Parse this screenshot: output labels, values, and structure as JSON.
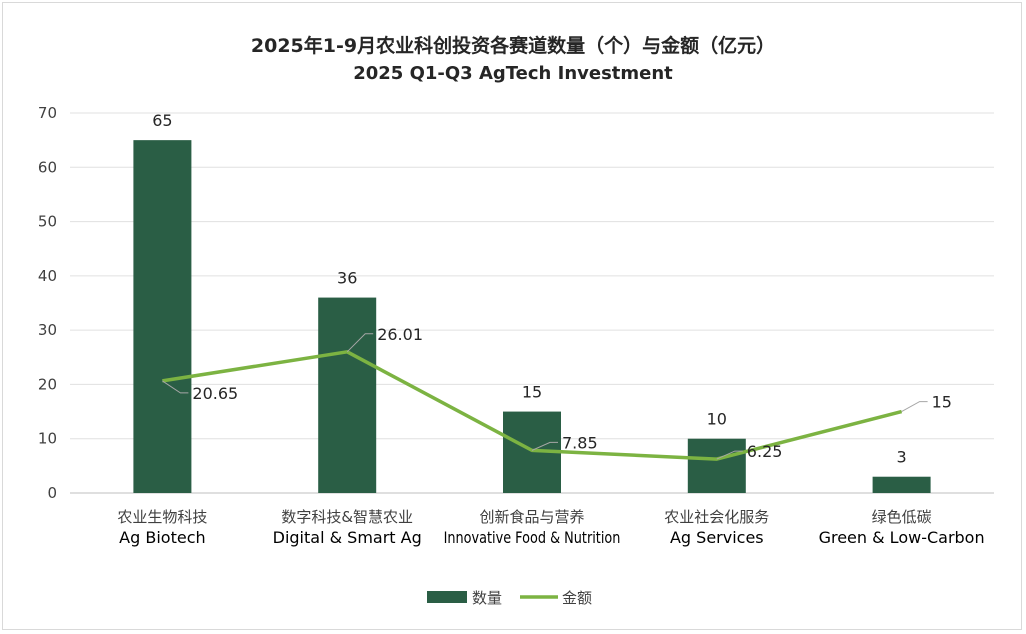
{
  "chart_data": {
    "type": "bar+line",
    "title": "2025年1-9月农业科创投资各赛道数量（个）与金额（亿元）",
    "subtitle": "2025 Q1-Q3 AgTech Investment",
    "categories": [
      {
        "cn": "农业生物科技",
        "en": "Ag Biotech"
      },
      {
        "cn": "数字科技&智慧农业",
        "en": "Digital & Smart Ag"
      },
      {
        "cn": "创新食品与营养",
        "en": "Innovative Food & Nutrition"
      },
      {
        "cn": "农业社会化服务",
        "en": "Ag Services"
      },
      {
        "cn": "绿色低碳",
        "en": "Green & Low-Carbon"
      }
    ],
    "series": [
      {
        "name": "数量",
        "type": "bar",
        "color": "#2a5e45",
        "values": [
          65,
          36,
          15,
          10,
          3
        ],
        "labels": [
          "65",
          "36",
          "15",
          "10",
          "3"
        ]
      },
      {
        "name": "金额",
        "type": "line",
        "color": "#7cb342",
        "values": [
          20.65,
          26.01,
          7.85,
          6.25,
          15
        ],
        "labels": [
          "20.65",
          "26.01",
          "7.85",
          "6.25",
          "15"
        ]
      }
    ],
    "ylim": [
      0,
      70
    ],
    "yticks": [
      "0",
      "10",
      "20",
      "30",
      "40",
      "50",
      "60",
      "70"
    ],
    "grid": true,
    "legend": "bottom"
  }
}
